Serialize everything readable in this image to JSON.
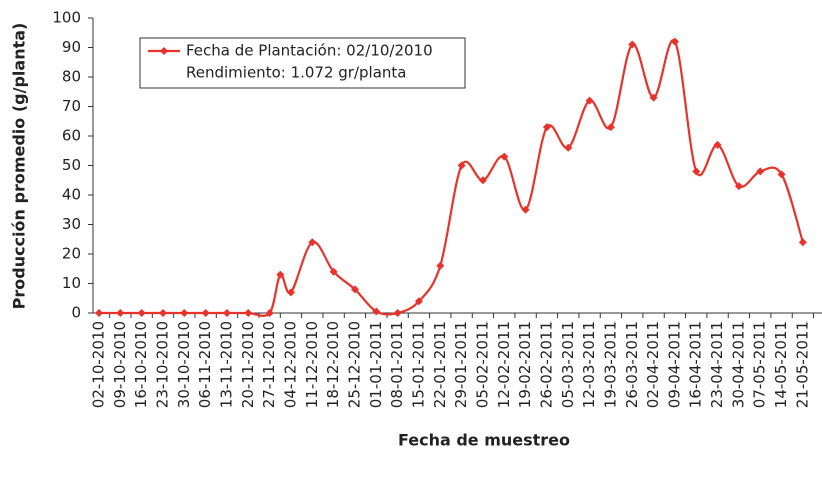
{
  "chart_data": {
    "type": "line",
    "xlabel": "Fecha de muestreo",
    "ylabel": "Producción promedio (g/planta)",
    "categories": [
      "02-10-2010",
      "09-10-2010",
      "16-10-2010",
      "23-10-2010",
      "30-10-2010",
      "06-11-2010",
      "13-11-2010",
      "20-11-2010",
      "27-11-2010",
      null,
      "04-12-2010",
      "11-12-2010",
      "18-12-2010",
      "25-12-2010",
      "01-01-2011",
      "08-01-2011",
      "15-01-2011",
      "22-01-2011",
      "29-01-2011",
      "05-02-2011",
      "12-02-2011",
      "19-02-2011",
      "26-02-2011",
      "05-03-2011",
      "12-03-2011",
      "19-03-2011",
      "26-03-2011",
      "02-04-2011",
      "09-04-2011",
      "16-04-2011",
      "23-04-2011",
      "30-04-2011",
      "07-05-2011",
      "14-05-2011",
      "21-05-2011"
    ],
    "series": [
      {
        "name": "Fecha de Plantación: 02/10/2010",
        "note": "Rendimiento: 1.072 gr/planta",
        "color": "#e8332a",
        "values": [
          0,
          0,
          0,
          0,
          0,
          0,
          0,
          0,
          0,
          13,
          7,
          24,
          14,
          8,
          0.5,
          0,
          4,
          16,
          50,
          45,
          53,
          35,
          63,
          56,
          72,
          63,
          91,
          73,
          92,
          48,
          57,
          43,
          48,
          47,
          24
        ]
      }
    ],
    "ylim": [
      0,
      100
    ],
    "yticks": [
      0,
      10,
      20,
      30,
      40,
      50,
      60,
      70,
      80,
      90,
      100
    ],
    "grid": false,
    "legend": "upper left"
  }
}
